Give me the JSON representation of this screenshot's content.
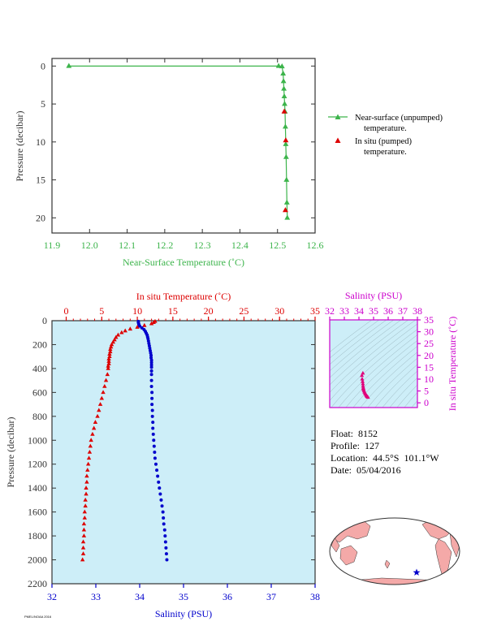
{
  "colors": {
    "green": "#3cb44b",
    "red": "#dd0000",
    "blue": "#0000cc",
    "magenta": "#cc00cc",
    "axis_dark": "#333333",
    "panel_bg": "#cdeef8"
  },
  "legend": {
    "near_surface": [
      "Near-surface (unpumped)",
      "temperature."
    ],
    "in_situ": [
      "In situ (pumped)",
      "temperature."
    ]
  },
  "info": {
    "float": "Float:  8152",
    "profile": "Profile:  127",
    "location": "Location:  44.5°S  101.1°W",
    "date": "Date:  05/04/2016"
  },
  "footer": "PMEL/NOAA 2016",
  "map_marker": "star-icon",
  "chart_data": [
    {
      "type": "line",
      "name": "near-surface-temperature",
      "xlabel": "Near-Surface Temperature (˚C)",
      "ylabel": "Pressure (decibar)",
      "xlim": [
        11.9,
        12.6
      ],
      "ylim": [
        22,
        -1
      ],
      "xticks": [
        "11.9",
        "12.0",
        "12.1",
        "12.2",
        "12.3",
        "12.4",
        "12.5",
        "12.6"
      ],
      "yticks": [
        "0",
        "5",
        "10",
        "15",
        "20"
      ],
      "series": [
        {
          "name": "Near-surface (unpumped) temperature.",
          "points": [
            [
              11.945,
              0.0
            ],
            [
              12.503,
              0.0
            ],
            [
              12.512,
              0.05
            ],
            [
              12.515,
              1.0
            ],
            [
              12.516,
              2.0
            ],
            [
              12.517,
              3.0
            ],
            [
              12.518,
              4.0
            ],
            [
              12.519,
              5.0
            ],
            [
              12.52,
              6.0
            ],
            [
              12.521,
              8.0
            ],
            [
              12.522,
              10.3
            ],
            [
              12.523,
              12.0
            ],
            [
              12.524,
              15.0
            ],
            [
              12.525,
              18.0
            ],
            [
              12.526,
              20.0
            ]
          ]
        },
        {
          "name": "In situ (pumped) temperature.",
          "points": [
            [
              12.518,
              6.0
            ],
            [
              12.522,
              9.8
            ],
            [
              12.521,
              19.0
            ]
          ]
        }
      ]
    },
    {
      "type": "scatter",
      "name": "profile",
      "ylabel": "Pressure (decibar)",
      "top_xlabel": "In situ Temperature (˚C)",
      "bottom_xlabel": "Salinity (PSU)",
      "temp_lim": [
        -2,
        35
      ],
      "sal_lim": [
        32,
        38
      ],
      "ylim": [
        2200,
        0
      ],
      "temp_ticks": [
        "0",
        "5",
        "10",
        "15",
        "20",
        "25",
        "30",
        "35"
      ],
      "sal_ticks": [
        "32",
        "33",
        "34",
        "35",
        "36",
        "37",
        "38"
      ],
      "y_ticks": [
        "0",
        "200",
        "400",
        "600",
        "800",
        "1000",
        "1200",
        "1400",
        "1600",
        "1800",
        "2000",
        "2200"
      ],
      "series": [
        {
          "name": "In situ Temperature",
          "points": [
            [
              12.5,
              6
            ],
            [
              12.3,
              15
            ],
            [
              12.0,
              25
            ],
            [
              11.0,
              40
            ],
            [
              10.0,
              55
            ],
            [
              9.0,
              70
            ],
            [
              8.3,
              85
            ],
            [
              7.8,
              100
            ],
            [
              7.3,
              120
            ],
            [
              7.0,
              140
            ],
            [
              6.8,
              160
            ],
            [
              6.6,
              180
            ],
            [
              6.4,
              200
            ],
            [
              6.3,
              220
            ],
            [
              6.2,
              240
            ],
            [
              6.2,
              260
            ],
            [
              6.1,
              280
            ],
            [
              6.1,
              300
            ],
            [
              6.0,
              320
            ],
            [
              6.0,
              340
            ],
            [
              6.0,
              360
            ],
            [
              5.9,
              380
            ],
            [
              5.9,
              400
            ],
            [
              5.8,
              450
            ],
            [
              5.6,
              500
            ],
            [
              5.4,
              550
            ],
            [
              5.2,
              600
            ],
            [
              5.0,
              650
            ],
            [
              4.8,
              700
            ],
            [
              4.6,
              750
            ],
            [
              4.4,
              800
            ],
            [
              4.1,
              850
            ],
            [
              3.9,
              900
            ],
            [
              3.7,
              950
            ],
            [
              3.5,
              1000
            ],
            [
              3.4,
              1050
            ],
            [
              3.3,
              1100
            ],
            [
              3.2,
              1150
            ],
            [
              3.1,
              1200
            ],
            [
              3.0,
              1250
            ],
            [
              2.9,
              1300
            ],
            [
              2.9,
              1350
            ],
            [
              2.8,
              1400
            ],
            [
              2.8,
              1450
            ],
            [
              2.7,
              1500
            ],
            [
              2.7,
              1550
            ],
            [
              2.6,
              1600
            ],
            [
              2.6,
              1650
            ],
            [
              2.5,
              1700
            ],
            [
              2.5,
              1750
            ],
            [
              2.5,
              1800
            ],
            [
              2.4,
              1850
            ],
            [
              2.4,
              1900
            ],
            [
              2.4,
              1950
            ],
            [
              2.3,
              2000
            ]
          ]
        },
        {
          "name": "Salinity",
          "points": [
            [
              33.97,
              6
            ],
            [
              33.97,
              15
            ],
            [
              33.98,
              30
            ],
            [
              34.0,
              45
            ],
            [
              34.05,
              60
            ],
            [
              34.1,
              75
            ],
            [
              34.13,
              90
            ],
            [
              34.15,
              105
            ],
            [
              34.17,
              120
            ],
            [
              34.18,
              135
            ],
            [
              34.19,
              150
            ],
            [
              34.2,
              170
            ],
            [
              34.21,
              190
            ],
            [
              34.22,
              210
            ],
            [
              34.23,
              230
            ],
            [
              34.24,
              250
            ],
            [
              34.25,
              270
            ],
            [
              34.26,
              290
            ],
            [
              34.26,
              310
            ],
            [
              34.27,
              330
            ],
            [
              34.27,
              350
            ],
            [
              34.27,
              370
            ],
            [
              34.27,
              390
            ],
            [
              34.27,
              420
            ],
            [
              34.27,
              450
            ],
            [
              34.27,
              500
            ],
            [
              34.27,
              550
            ],
            [
              34.28,
              600
            ],
            [
              34.28,
              650
            ],
            [
              34.28,
              700
            ],
            [
              34.29,
              750
            ],
            [
              34.29,
              800
            ],
            [
              34.3,
              850
            ],
            [
              34.3,
              900
            ],
            [
              34.31,
              950
            ],
            [
              34.32,
              1000
            ],
            [
              34.33,
              1050
            ],
            [
              34.34,
              1100
            ],
            [
              34.35,
              1150
            ],
            [
              34.37,
              1200
            ],
            [
              34.39,
              1250
            ],
            [
              34.41,
              1300
            ],
            [
              34.43,
              1350
            ],
            [
              34.45,
              1400
            ],
            [
              34.47,
              1450
            ],
            [
              34.49,
              1500
            ],
            [
              34.51,
              1550
            ],
            [
              34.53,
              1600
            ],
            [
              34.54,
              1650
            ],
            [
              34.55,
              1700
            ],
            [
              34.57,
              1750
            ],
            [
              34.58,
              1800
            ],
            [
              34.59,
              1850
            ],
            [
              34.6,
              1900
            ],
            [
              34.61,
              1950
            ],
            [
              34.62,
              2000
            ]
          ]
        }
      ]
    },
    {
      "type": "scatter",
      "name": "ts-diagram",
      "top_xlabel": "Salinity (PSU)",
      "right_ylabel": "In situ Temperature (˚C)",
      "sal_lim": [
        32,
        38
      ],
      "temp_lim": [
        -2,
        35
      ],
      "sal_ticks": [
        "32",
        "33",
        "34",
        "35",
        "36",
        "37",
        "38"
      ],
      "temp_ticks": [
        "0",
        "5",
        "10",
        "15",
        "20",
        "25",
        "30",
        "35"
      ],
      "points": [
        [
          34.27,
          12.5
        ],
        [
          34.2,
          11.5
        ],
        [
          34.22,
          10.0
        ],
        [
          34.25,
          9.0
        ],
        [
          34.27,
          8.0
        ],
        [
          34.28,
          7.0
        ],
        [
          34.3,
          6.3
        ],
        [
          34.3,
          6.0
        ],
        [
          34.32,
          5.5
        ],
        [
          34.35,
          5.0
        ],
        [
          34.38,
          4.5
        ],
        [
          34.42,
          4.0
        ],
        [
          34.46,
          3.6
        ],
        [
          34.5,
          3.2
        ],
        [
          34.53,
          2.9
        ],
        [
          34.56,
          2.7
        ],
        [
          34.59,
          2.5
        ],
        [
          34.62,
          2.3
        ]
      ]
    }
  ]
}
